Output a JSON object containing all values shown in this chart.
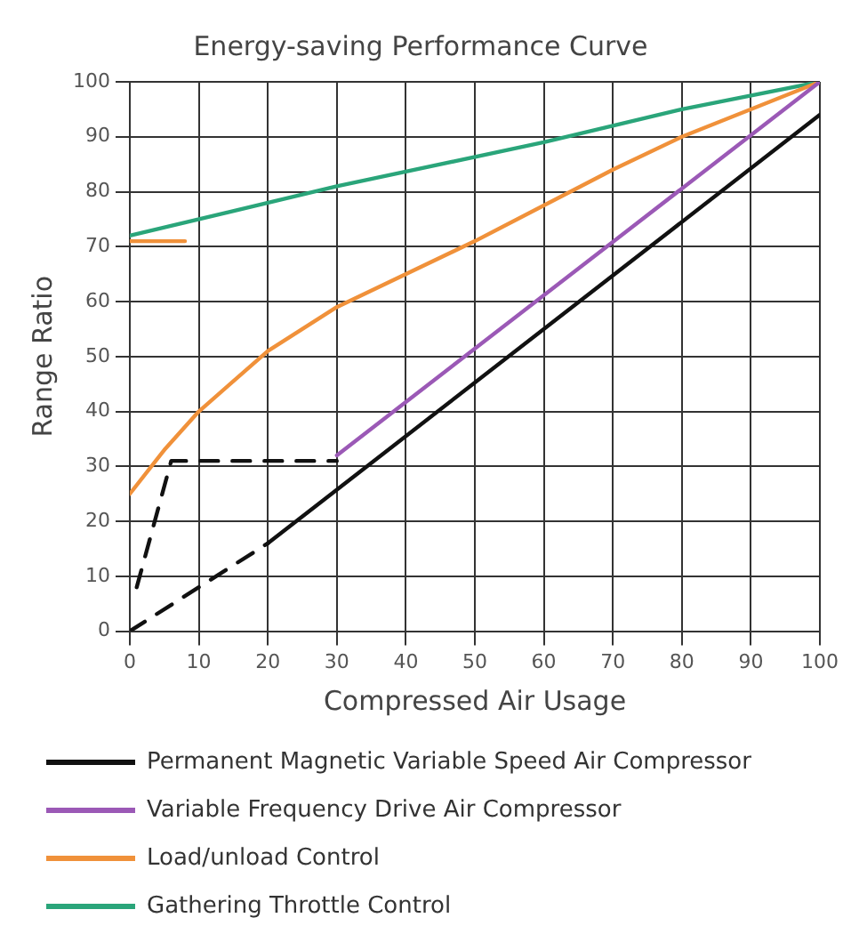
{
  "chart_data": {
    "type": "line",
    "title": "Energy-saving Performance Curve",
    "xlabel": "Compressed Air Usage",
    "ylabel": "Range Ratio",
    "xlim": [
      0,
      100
    ],
    "ylim": [
      0,
      100
    ],
    "xticks": [
      0,
      10,
      20,
      30,
      40,
      50,
      60,
      70,
      80,
      90,
      100
    ],
    "yticks": [
      0,
      10,
      20,
      30,
      40,
      50,
      60,
      70,
      80,
      90,
      100
    ],
    "grid": true,
    "legend": "bottom",
    "marker": "none",
    "series": [
      {
        "name": "Permanent Magnetic Variable Speed Air Compressor",
        "color": "#111111",
        "x": [
          20,
          100
        ],
        "values": [
          16,
          94
        ]
      },
      {
        "name": "Variable Frequency Drive Air Compressor",
        "color": "#9b59b6",
        "x": [
          30,
          100
        ],
        "values": [
          32,
          100
        ]
      },
      {
        "name": "Load/unload Control",
        "color": "#f0913a",
        "x": [
          0,
          5,
          10,
          20,
          30,
          50,
          70,
          80,
          100
        ],
        "values": [
          25,
          33,
          40,
          51,
          59,
          71,
          84,
          90,
          100
        ]
      },
      {
        "name": "Gathering Throttle Control",
        "color": "#2aa57a",
        "x": [
          0,
          30,
          60,
          80,
          100
        ],
        "values": [
          72,
          81,
          89,
          95,
          100
        ]
      },
      {
        "color": "#f0913a",
        "x": [
          0,
          8
        ],
        "values": [
          71,
          71
        ]
      },
      {
        "color": "#111111",
        "x": [
          0,
          20
        ],
        "values": [
          0,
          16
        ],
        "line_style": "dashed"
      },
      {
        "color": "#111111",
        "x": [
          1,
          6,
          30
        ],
        "values": [
          8,
          31,
          31
        ],
        "line_style": "dashed"
      }
    ]
  }
}
